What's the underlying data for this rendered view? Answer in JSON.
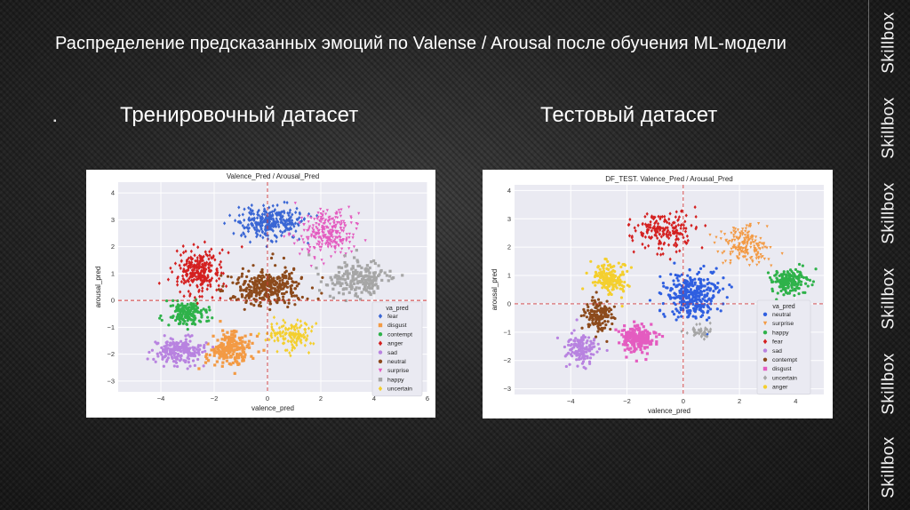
{
  "slide": {
    "title": "Распределение предсказанных эмоций по Valense / Arousal после обучения ML-модели",
    "bullet": "▪",
    "left_heading": "Тренировочный датасет",
    "right_heading": "Тестовый датасет"
  },
  "brand": {
    "label": "Skillbox",
    "repeat": [
      "Skillbox",
      "Skillbox",
      "Skillbox",
      "Skillbox",
      "Skillbox",
      "Skillbox"
    ]
  },
  "chart_data": [
    {
      "type": "scatter",
      "title": "Valence_Pred / Arousal_Pred",
      "xlabel": "valence_pred",
      "ylabel": "arousal_pred",
      "xlim": [
        -5.6,
        6.0
      ],
      "ylim": [
        -3.4,
        4.4
      ],
      "xticks": [
        -4,
        -2,
        0,
        2,
        4,
        6
      ],
      "yticks": [
        -3,
        -2,
        -1,
        0,
        1,
        2,
        3,
        4
      ],
      "grid": true,
      "reference_lines": {
        "x": 0,
        "y": 0
      },
      "legend_title": "va_pred",
      "legend_position": "lower-right",
      "series": [
        {
          "name": "fear",
          "color": "#3a66d4",
          "marker": "diamond",
          "center": [
            0.0,
            2.9
          ],
          "spread": [
            1.1,
            0.55
          ],
          "n": 300
        },
        {
          "name": "disgust",
          "color": "#f39a44",
          "marker": "square",
          "center": [
            -1.4,
            -1.8
          ],
          "spread": [
            0.7,
            0.55
          ],
          "n": 200
        },
        {
          "name": "contempt",
          "color": "#2fb24a",
          "marker": "circle",
          "center": [
            -3.0,
            -0.45
          ],
          "spread": [
            0.65,
            0.4
          ],
          "n": 170
        },
        {
          "name": "anger",
          "color": "#d42020",
          "marker": "diamond",
          "center": [
            -2.6,
            1.1
          ],
          "spread": [
            0.8,
            0.75
          ],
          "n": 260
        },
        {
          "name": "sad",
          "color": "#b883e0",
          "marker": "circle",
          "center": [
            -3.3,
            -1.9
          ],
          "spread": [
            0.75,
            0.45
          ],
          "n": 210
        },
        {
          "name": "neutral",
          "color": "#8c4a1c",
          "marker": "circle",
          "center": [
            0.0,
            0.45
          ],
          "spread": [
            1.2,
            0.65
          ],
          "n": 340
        },
        {
          "name": "surprise",
          "color": "#e45cc0",
          "marker": "triangle",
          "center": [
            2.2,
            2.5
          ],
          "spread": [
            0.9,
            0.7
          ],
          "n": 260
        },
        {
          "name": "happy",
          "color": "#a6a6a6",
          "marker": "square",
          "center": [
            3.4,
            0.8
          ],
          "spread": [
            1.0,
            0.6
          ],
          "n": 200
        },
        {
          "name": "uncertain",
          "color": "#f4cf2e",
          "marker": "diamond",
          "center": [
            0.9,
            -1.3
          ],
          "spread": [
            0.8,
            0.5
          ],
          "n": 140
        }
      ]
    },
    {
      "type": "scatter",
      "title": "DF_TEST. Valence_Pred / Arousal_Pred",
      "xlabel": "valence_pred",
      "ylabel": "arousal_pred",
      "xlim": [
        -6.0,
        5.0
      ],
      "ylim": [
        -3.2,
        4.2
      ],
      "xticks": [
        -4,
        -2,
        0,
        2,
        4
      ],
      "yticks": [
        -3,
        -2,
        -1,
        0,
        1,
        2,
        3,
        4
      ],
      "grid": true,
      "reference_lines": {
        "x": 0,
        "y": 0
      },
      "legend_title": "va_pred",
      "legend_position": "lower-right",
      "series": [
        {
          "name": "neutral",
          "color": "#2f5fe0",
          "marker": "circle",
          "center": [
            0.3,
            0.25
          ],
          "spread": [
            0.85,
            0.75
          ],
          "n": 320
        },
        {
          "name": "surprise",
          "color": "#f39a44",
          "marker": "triangle",
          "center": [
            2.2,
            2.1
          ],
          "spread": [
            0.8,
            0.6
          ],
          "n": 190
        },
        {
          "name": "happy",
          "color": "#2fb24a",
          "marker": "circle",
          "center": [
            3.8,
            0.8
          ],
          "spread": [
            0.6,
            0.4
          ],
          "n": 170
        },
        {
          "name": "fear",
          "color": "#d42020",
          "marker": "diamond",
          "center": [
            -0.6,
            2.6
          ],
          "spread": [
            1.1,
            0.6
          ],
          "n": 180
        },
        {
          "name": "sad",
          "color": "#b883e0",
          "marker": "circle",
          "center": [
            -3.6,
            -1.6
          ],
          "spread": [
            0.5,
            0.5
          ],
          "n": 130
        },
        {
          "name": "contempt",
          "color": "#8c4a1c",
          "marker": "circle",
          "center": [
            -3.0,
            -0.4
          ],
          "spread": [
            0.45,
            0.5
          ],
          "n": 140
        },
        {
          "name": "disgust",
          "color": "#e45cc0",
          "marker": "square",
          "center": [
            -1.6,
            -1.2
          ],
          "spread": [
            0.6,
            0.5
          ],
          "n": 180
        },
        {
          "name": "uncertain",
          "color": "#a6a6a6",
          "marker": "diamond",
          "center": [
            0.6,
            -1.0
          ],
          "spread": [
            0.4,
            0.25
          ],
          "n": 40
        },
        {
          "name": "anger",
          "color": "#f4cf2e",
          "marker": "circle",
          "center": [
            -2.6,
            0.9
          ],
          "spread": [
            0.65,
            0.5
          ],
          "n": 160
        }
      ]
    }
  ]
}
